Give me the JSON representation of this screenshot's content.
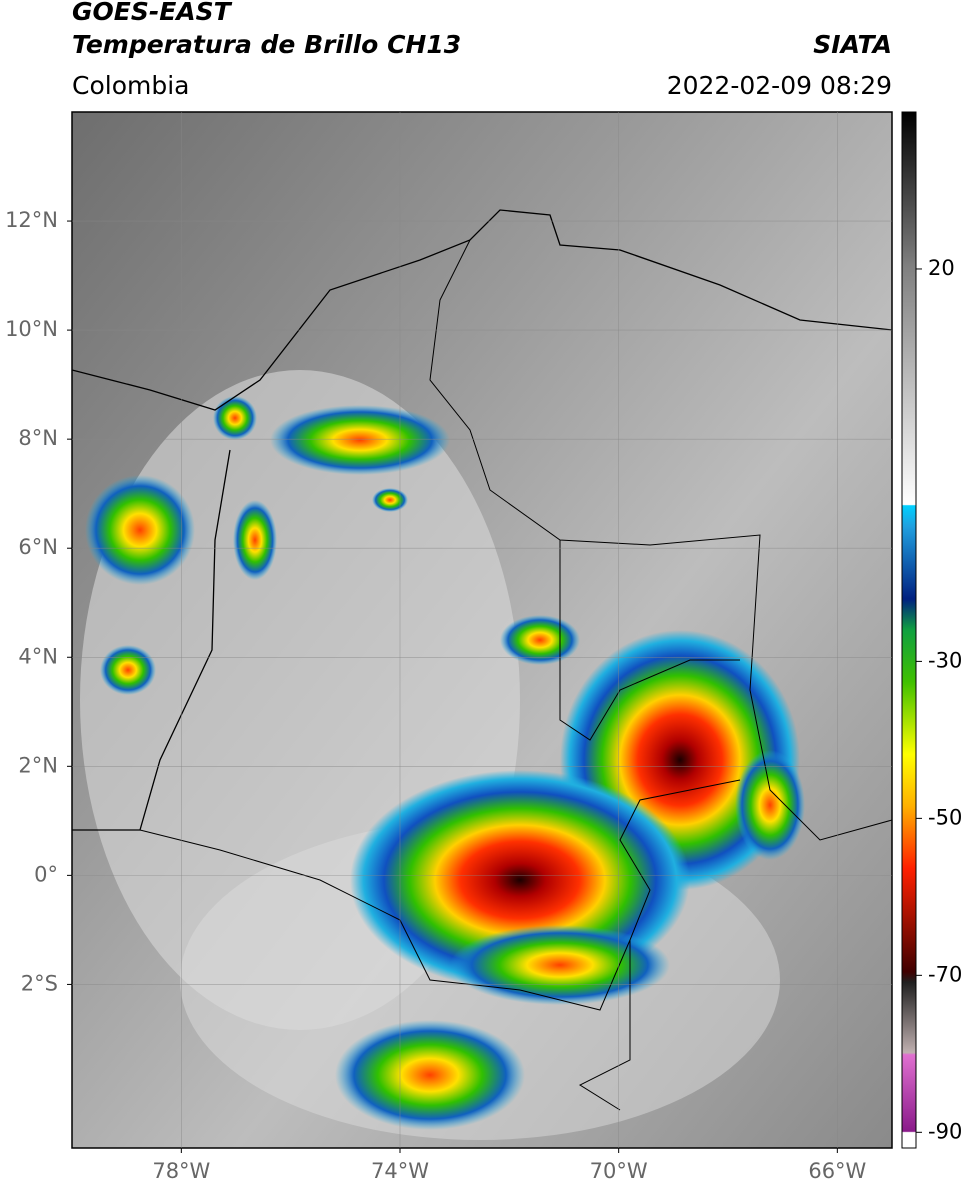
{
  "header": {
    "title": "GOES-EAST",
    "subtitle": "Temperatura de Brillo CH13",
    "source": "SIATA",
    "region": "Colombia",
    "datetime": "2022-02-09 08:29"
  },
  "map": {
    "ylim": [
      -5,
      14
    ],
    "yticks": [
      {
        "value": 12,
        "label": "12°N"
      },
      {
        "value": 10,
        "label": "10°N"
      },
      {
        "value": 8,
        "label": "8°N"
      },
      {
        "value": 6,
        "label": "6°N"
      },
      {
        "value": 4,
        "label": "4°N"
      },
      {
        "value": 2,
        "label": "2°N"
      },
      {
        "value": 0,
        "label": "0°"
      },
      {
        "value": -2,
        "label": "2°S"
      }
    ],
    "xlim": [
      -80,
      -65
    ],
    "xticks": [
      {
        "value": -78,
        "label": "78°W"
      },
      {
        "value": -74,
        "label": "74°W"
      },
      {
        "value": -70,
        "label": "70°W"
      },
      {
        "value": -66,
        "label": "66°W"
      }
    ],
    "grid": true
  },
  "colorbar": {
    "lim": [
      -92,
      40
    ],
    "ticks": [
      20,
      -30,
      -50,
      -70,
      -90
    ]
  }
}
